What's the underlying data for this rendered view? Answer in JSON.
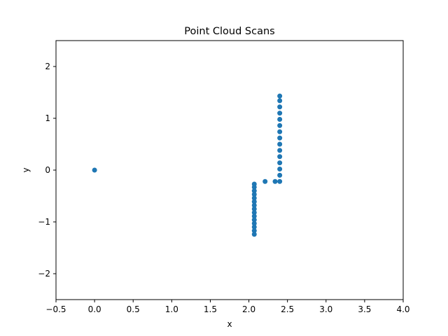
{
  "chart_data": {
    "type": "scatter",
    "title": "Point Cloud Scans",
    "xlabel": "x",
    "ylabel": "y",
    "xlim": [
      -0.5,
      4.0
    ],
    "ylim": [
      -2.5,
      2.5
    ],
    "xticks": [
      -0.5,
      0.0,
      0.5,
      1.0,
      1.5,
      2.0,
      2.5,
      3.0,
      3.5,
      4.0
    ],
    "xtick_labels": [
      "−0.5",
      "0.0",
      "0.5",
      "1.0",
      "1.5",
      "2.0",
      "2.5",
      "3.0",
      "3.5",
      "4.0"
    ],
    "yticks": [
      -2,
      -1,
      0,
      1,
      2
    ],
    "ytick_labels": [
      "−2",
      "−1",
      "0",
      "1",
      "2"
    ],
    "grid": false,
    "color": "#1f77b4",
    "series": [
      {
        "points": [
          [
            0.0,
            0.0
          ],
          [
            2.07,
            -0.27
          ],
          [
            2.07,
            -0.33
          ],
          [
            2.07,
            -0.4
          ],
          [
            2.07,
            -0.47
          ],
          [
            2.07,
            -0.54
          ],
          [
            2.07,
            -0.61
          ],
          [
            2.07,
            -0.68
          ],
          [
            2.07,
            -0.75
          ],
          [
            2.07,
            -0.82
          ],
          [
            2.07,
            -0.89
          ],
          [
            2.07,
            -0.96
          ],
          [
            2.07,
            -1.03
          ],
          [
            2.07,
            -1.1
          ],
          [
            2.07,
            -1.17
          ],
          [
            2.07,
            -1.24
          ],
          [
            2.21,
            -0.22
          ],
          [
            2.34,
            -0.22
          ],
          [
            2.4,
            -0.22
          ],
          [
            2.4,
            -0.1
          ],
          [
            2.4,
            0.02
          ],
          [
            2.4,
            0.14
          ],
          [
            2.4,
            0.26
          ],
          [
            2.4,
            0.38
          ],
          [
            2.4,
            0.5
          ],
          [
            2.4,
            0.62
          ],
          [
            2.4,
            0.74
          ],
          [
            2.4,
            0.86
          ],
          [
            2.4,
            0.98
          ],
          [
            2.4,
            1.1
          ],
          [
            2.4,
            1.22
          ],
          [
            2.4,
            1.34
          ],
          [
            2.4,
            1.43
          ]
        ]
      }
    ]
  }
}
